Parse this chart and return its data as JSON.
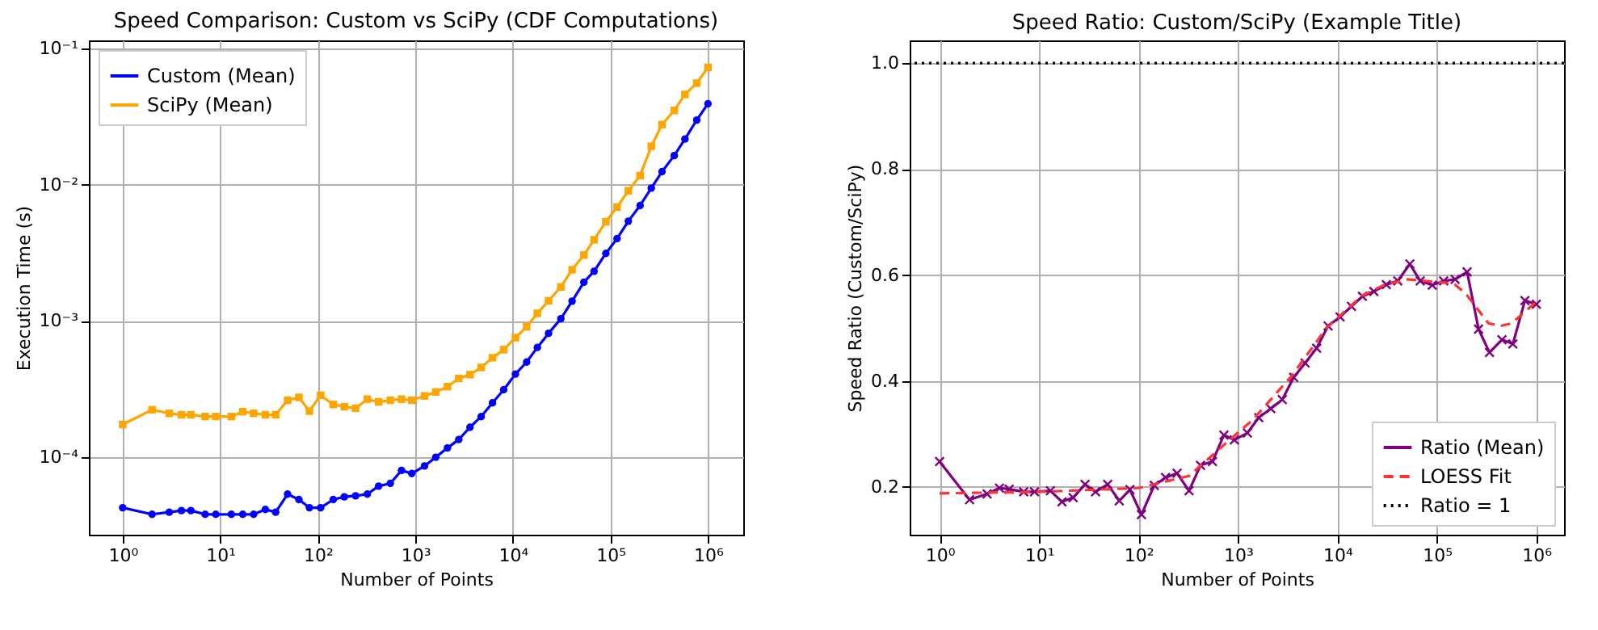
{
  "chart_data": [
    {
      "type": "line",
      "title": "Speed Comparison: Custom vs SciPy (CDF Computations)",
      "xlabel": "Number of Points",
      "ylabel": "Execution Time (s)",
      "log": "xy",
      "grid": true,
      "legend": "top left",
      "xlim": [
        0.45,
        2300000
      ],
      "ylim": [
        2.7e-05,
        0.115
      ],
      "xticks": [
        {
          "value": 1,
          "label": "10⁰"
        },
        {
          "value": 10,
          "label": "10¹"
        },
        {
          "value": 100,
          "label": "10²"
        },
        {
          "value": 1000,
          "label": "10³"
        },
        {
          "value": 10000,
          "label": "10⁴"
        },
        {
          "value": 100000,
          "label": "10⁵"
        },
        {
          "value": 1000000,
          "label": "10⁶"
        }
      ],
      "yticks": [
        {
          "value": 0.0001,
          "label": "10⁻⁴"
        },
        {
          "value": 0.001,
          "label": "10⁻³"
        },
        {
          "value": 0.01,
          "label": "10⁻²"
        },
        {
          "value": 0.1,
          "label": "10⁻¹"
        }
      ],
      "x": [
        1,
        2,
        3,
        4,
        5,
        7,
        9,
        13,
        17,
        22,
        29,
        37,
        49,
        64,
        82,
        107,
        144,
        187,
        244,
        322,
        420,
        554,
        722,
        919,
        1242,
        1619,
        2136,
        2788,
        3631,
        4732,
        6180,
        8054,
        10620,
        13840,
        17830,
        23230,
        31040,
        40460,
        53460,
        67960,
        89790,
        117000,
        152500,
        201300,
        262400,
        337900,
        451000,
        580600,
        767400,
        1000000
      ],
      "series": [
        {
          "name": "Custom (Mean)",
          "color": "#0000ff",
          "marker": "circle",
          "values": [
            4.26e-05,
            3.81e-05,
            3.95e-05,
            4.06e-05,
            4.06e-05,
            3.81e-05,
            3.81e-05,
            3.81e-05,
            3.81e-05,
            3.81e-05,
            4.14e-05,
            3.95e-05,
            5.36e-05,
            4.89e-05,
            4.26e-05,
            4.26e-05,
            4.89e-05,
            5.12e-05,
            5.21e-05,
            5.36e-05,
            6.14e-05,
            6.43e-05,
            8.01e-05,
            7.59e-05,
            8.63e-05,
            0.0001,
            0.000117,
            0.000135,
            0.000166,
            0.000199,
            0.000251,
            0.000313,
            0.000408,
            0.0005,
            0.00064,
            0.000813,
            0.00104,
            0.0014,
            0.00193,
            0.00232,
            0.00314,
            0.00403,
            0.00541,
            0.00705,
            0.00946,
            0.0125,
            0.0164,
            0.0217,
            0.0299,
            0.0394
          ]
        },
        {
          "name": "SciPy (Mean)",
          "color": "#ffa500",
          "marker": "square",
          "values": [
            0.000174,
            0.000223,
            0.00021,
            0.000205,
            0.000205,
            0.000199,
            0.000199,
            0.000199,
            0.000216,
            0.00021,
            0.000205,
            0.000205,
            0.000262,
            0.000275,
            0.000218,
            0.000285,
            0.000244,
            0.000235,
            0.000229,
            0.000267,
            0.000255,
            0.000262,
            0.000267,
            0.000262,
            0.000282,
            0.000301,
            0.00033,
            0.000379,
            0.000404,
            0.000456,
            0.000538,
            0.000617,
            0.000755,
            0.000908,
            0.00114,
            0.00141,
            0.00178,
            0.00238,
            0.00305,
            0.00395,
            0.00536,
            0.00686,
            0.00904,
            0.0117,
            0.0192,
            0.0277,
            0.0352,
            0.0461,
            0.0558,
            0.0728
          ]
        }
      ]
    },
    {
      "type": "line",
      "title": "Speed Ratio: Custom/SciPy (Example Title)",
      "xlabel": "Number of Points",
      "ylabel": "Speed Ratio (Custom/SciPy)",
      "log": "x",
      "grid": true,
      "legend": "bottom right",
      "xlim": [
        0.5,
        1900000
      ],
      "ylim": [
        0.11,
        1.043
      ],
      "xticks": [
        {
          "value": 1,
          "label": "10⁰"
        },
        {
          "value": 10,
          "label": "10¹"
        },
        {
          "value": 100,
          "label": "10²"
        },
        {
          "value": 1000,
          "label": "10³"
        },
        {
          "value": 10000,
          "label": "10⁴"
        },
        {
          "value": 100000,
          "label": "10⁵"
        },
        {
          "value": 1000000,
          "label": "10⁶"
        }
      ],
      "yticks": [
        0.2,
        0.4,
        0.6,
        0.8,
        {
          "value": 1,
          "label": "1.0"
        }
      ],
      "ref_lines": [
        {
          "axis": "y",
          "value": 1,
          "label": "Ratio = 1",
          "color": "#000000",
          "line_style": "dotted"
        }
      ],
      "x": [
        1,
        2,
        3,
        4,
        5,
        7,
        9,
        13,
        17,
        22,
        29,
        37,
        49,
        64,
        82,
        107,
        144,
        187,
        244,
        322,
        420,
        554,
        722,
        919,
        1242,
        1619,
        2136,
        2788,
        3631,
        4732,
        6180,
        8054,
        10620,
        13840,
        17830,
        23230,
        31040,
        40460,
        53460,
        67960,
        89790,
        117000,
        152500,
        201300,
        262400,
        337900,
        451000,
        580600,
        767400,
        1000000
      ],
      "series": [
        {
          "name": "Ratio (Mean)",
          "color": "#800080",
          "marker": "cross",
          "values": [
            0.248,
            0.176,
            0.187,
            0.198,
            0.196,
            0.191,
            0.191,
            0.193,
            0.172,
            0.18,
            0.205,
            0.191,
            0.205,
            0.174,
            0.195,
            0.148,
            0.203,
            0.218,
            0.226,
            0.193,
            0.241,
            0.248,
            0.298,
            0.289,
            0.302,
            0.331,
            0.348,
            0.365,
            0.407,
            0.434,
            0.462,
            0.504,
            0.521,
            0.541,
            0.56,
            0.569,
            0.582,
            0.589,
            0.621,
            0.589,
            0.581,
            0.589,
            0.592,
            0.606,
            0.498,
            0.454,
            0.478,
            0.47,
            0.552,
            0.545
          ]
        },
        {
          "name": "LOESS Fit",
          "color": "#ff3333",
          "line_style": "dashed",
          "marker": "none",
          "x": [
            1,
            10,
            100,
            322,
            688,
            1410,
            3480,
            7740,
            17600,
            29300,
            51000,
            147000,
            193000,
            330000,
            436000,
            567000,
            1000000
          ],
          "values": [
            0.188,
            0.191,
            0.198,
            0.221,
            0.276,
            0.327,
            0.41,
            0.5,
            0.561,
            0.581,
            0.592,
            0.584,
            0.566,
            0.509,
            0.504,
            0.509,
            0.55
          ]
        }
      ]
    }
  ]
}
